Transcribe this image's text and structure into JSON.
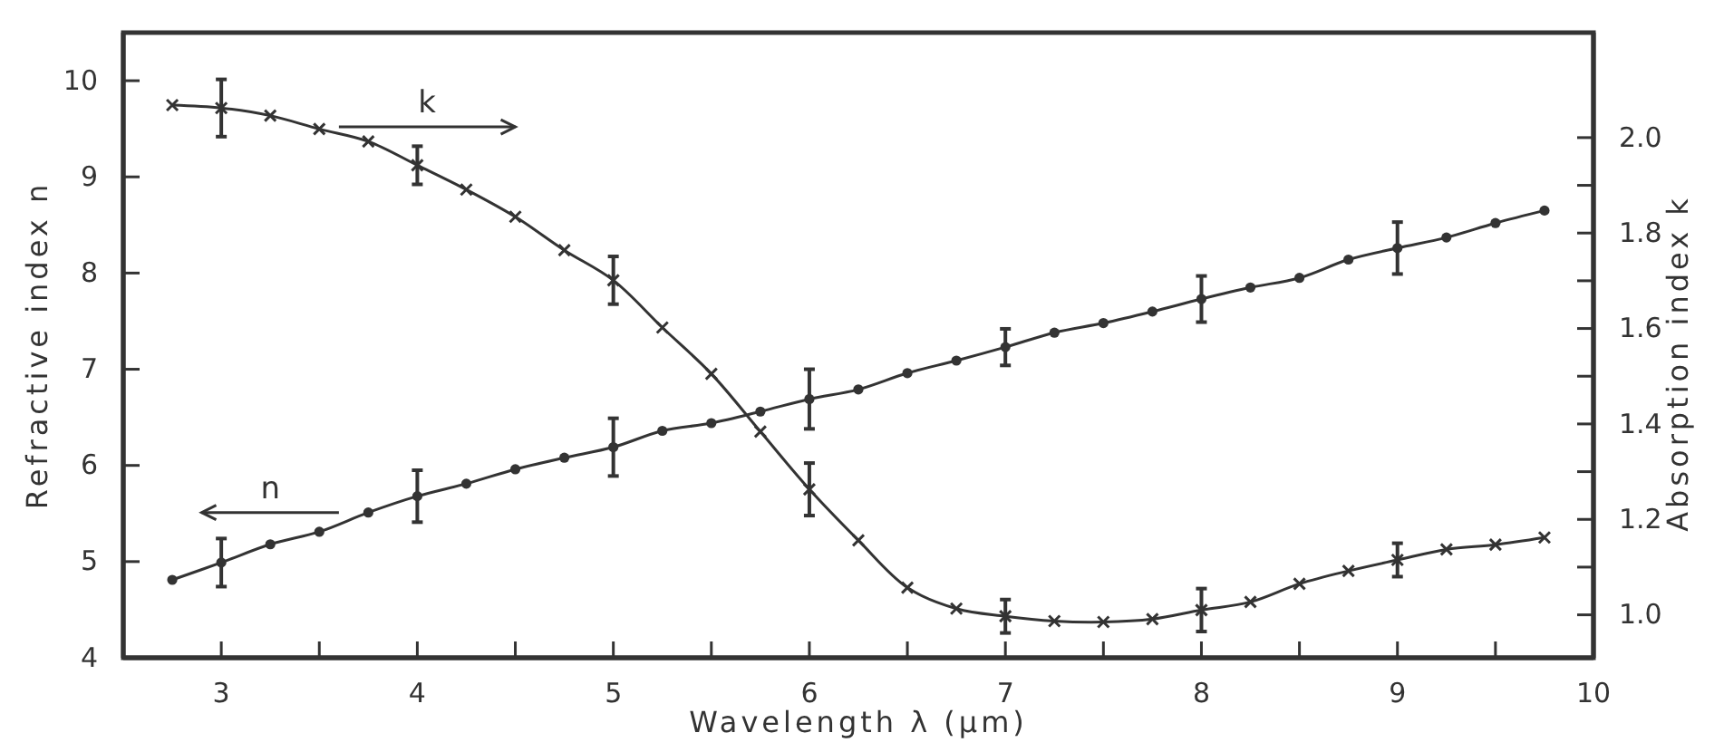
{
  "chart_data": {
    "type": "line",
    "xlabel": "Wavelength λ (μm)",
    "ylabel": "Refractive index n",
    "y2label": "Absorption index k",
    "xlim": [
      2.5,
      10
    ],
    "xticks": [
      {
        "value": 3,
        "label": "3"
      },
      {
        "value": 3.5,
        "label": null
      },
      {
        "value": 4,
        "label": "4"
      },
      {
        "value": 4.5,
        "label": null
      },
      {
        "value": 5,
        "label": "5"
      },
      {
        "value": 5.5,
        "label": null
      },
      {
        "value": 6,
        "label": "6"
      },
      {
        "value": 6.5,
        "label": null
      },
      {
        "value": 7,
        "label": "7"
      },
      {
        "value": 7.5,
        "label": null
      },
      {
        "value": 8,
        "label": "8"
      },
      {
        "value": 8.5,
        "label": null
      },
      {
        "value": 9,
        "label": "9"
      },
      {
        "value": 9.5,
        "label": null
      },
      {
        "value": 10,
        "label": "10"
      }
    ],
    "ylim": [
      4,
      10.5
    ],
    "yticks": [
      4,
      5,
      6,
      7,
      8,
      9,
      10
    ],
    "y2lim": [
      0.91,
      2.22
    ],
    "y2ticks": [
      {
        "value": 1,
        "label": "1.0"
      },
      {
        "value": 1.1,
        "label": null
      },
      {
        "value": 1.2,
        "label": "1.2"
      },
      {
        "value": 1.3,
        "label": null
      },
      {
        "value": 1.4,
        "label": "1.4"
      },
      {
        "value": 1.5,
        "label": null
      },
      {
        "value": 1.6,
        "label": "1.6"
      },
      {
        "value": 1.7,
        "label": null
      },
      {
        "value": 1.8,
        "label": "1.8"
      },
      {
        "value": 1.9,
        "label": null
      },
      {
        "value": 2,
        "label": "2.0"
      }
    ],
    "grid": false,
    "line_style": "solid",
    "x": [
      2.75,
      3,
      3.25,
      3.5,
      3.75,
      4,
      4.25,
      4.5,
      4.75,
      5,
      5.25,
      5.5,
      5.75,
      6,
      6.25,
      6.5,
      6.75,
      7,
      7.25,
      7.5,
      7.75,
      8,
      8.25,
      8.5,
      8.75,
      9,
      9.25,
      9.5,
      9.75
    ],
    "series": [
      {
        "name": "n",
        "color": "#333333",
        "marker": "circle",
        "values": [
          4.81,
          4.99,
          5.18,
          5.31,
          5.51,
          5.68,
          5.81,
          5.96,
          6.08,
          6.19,
          6.36,
          6.44,
          6.56,
          6.69,
          6.79,
          6.96,
          7.09,
          7.23,
          7.38,
          7.48,
          7.6,
          7.73,
          7.85,
          7.95,
          8.14,
          8.26,
          8.37,
          8.52,
          8.65
        ],
        "errors": [
          null,
          0.25,
          null,
          null,
          null,
          0.27,
          null,
          null,
          null,
          0.3,
          null,
          null,
          null,
          0.31,
          null,
          null,
          null,
          0.19,
          null,
          null,
          null,
          0.24,
          null,
          null,
          null,
          0.27,
          null,
          null,
          null
        ]
      },
      {
        "name": "k",
        "color": "#333333",
        "marker": "cross",
        "axis": "y2",
        "values": [
          2.068,
          2.062,
          2.046,
          2.018,
          1.992,
          1.942,
          1.891,
          1.834,
          1.764,
          1.701,
          1.602,
          1.505,
          1.384,
          1.263,
          1.156,
          1.057,
          1.013,
          0.997,
          0.987,
          0.985,
          0.991,
          1.01,
          1.027,
          1.065,
          1.092,
          1.115,
          1.137,
          1.147,
          1.162
        ],
        "errors": [
          null,
          0.06,
          null,
          null,
          null,
          0.04,
          null,
          null,
          null,
          0.05,
          null,
          null,
          null,
          0.055,
          null,
          null,
          null,
          0.035,
          null,
          null,
          null,
          0.045,
          null,
          null,
          null,
          0.035,
          null,
          null,
          null
        ]
      }
    ]
  }
}
